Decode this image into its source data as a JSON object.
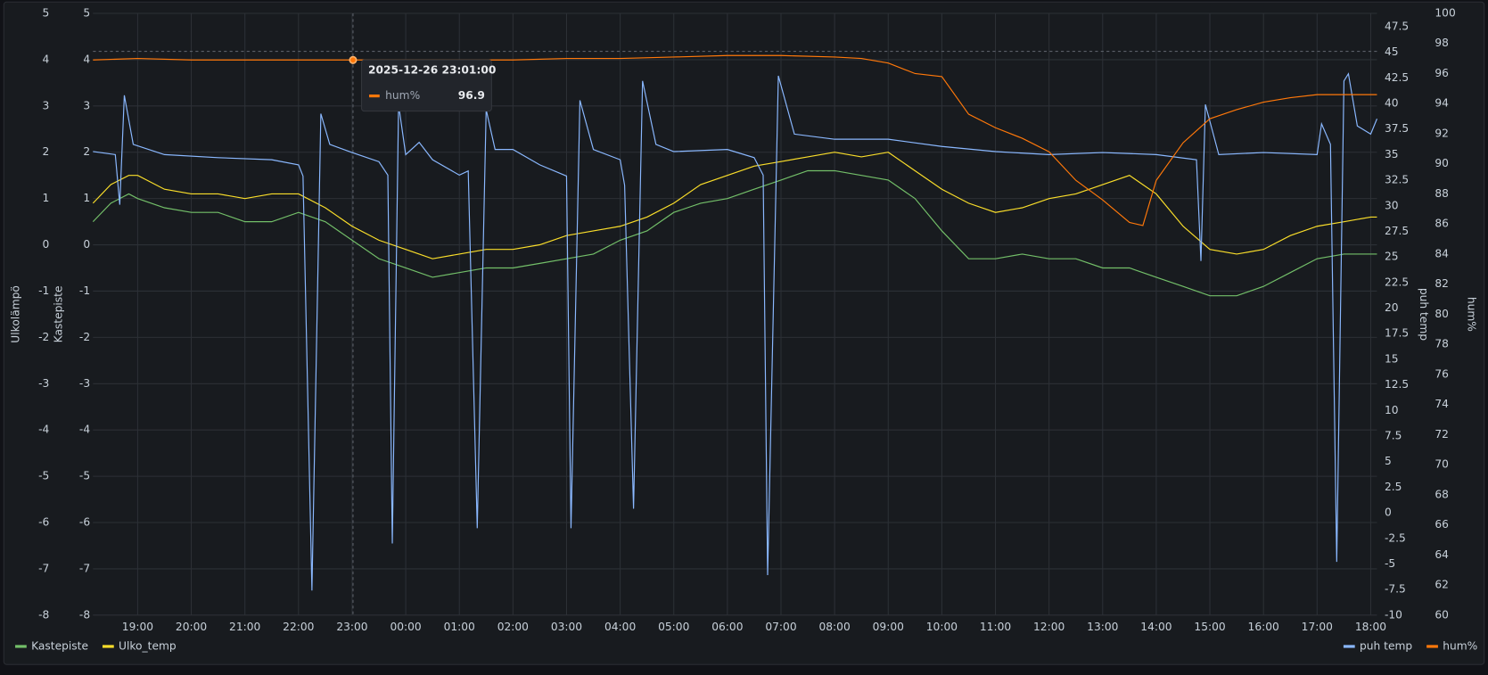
{
  "chart_data": {
    "type": "line",
    "grid": true,
    "xlim": [
      "18:10",
      "18:07"
    ],
    "xticks": [
      "19:00",
      "20:00",
      "21:00",
      "22:00",
      "23:00",
      "00:00",
      "01:00",
      "02:00",
      "03:00",
      "04:00",
      "05:00",
      "06:00",
      "07:00",
      "08:00",
      "09:00",
      "10:00",
      "11:00",
      "12:00",
      "13:00",
      "14:00",
      "15:00",
      "16:00",
      "17:00",
      "18:00"
    ],
    "axes": [
      {
        "label": "Ulkolämpö",
        "side": "left",
        "lim": [
          -8,
          5
        ],
        "ticks": [
          -8,
          -7,
          -6,
          -5,
          -4,
          -3,
          -2,
          -1,
          0,
          1,
          2,
          3,
          4,
          5
        ]
      },
      {
        "label": "Kastepiste",
        "side": "left",
        "lim": [
          -8,
          5
        ],
        "ticks": [
          -8,
          -7,
          -6,
          -5,
          -4,
          -3,
          -2,
          -1,
          0,
          1,
          2,
          3,
          4,
          5
        ]
      },
      {
        "label": "puh temp",
        "side": "right",
        "lim": [
          -10,
          48.8
        ],
        "ticks": [
          -10,
          -7.5,
          -5,
          -2.5,
          0,
          2.5,
          5,
          7.5,
          10,
          12.5,
          15,
          17.5,
          20,
          22.5,
          25,
          27.5,
          30,
          32.5,
          35,
          37.5,
          40,
          42.5,
          45,
          47.5
        ]
      },
      {
        "label": "hum%",
        "side": "right",
        "lim": [
          60,
          100
        ],
        "ticks": [
          60,
          62,
          64,
          66,
          68,
          70,
          72,
          74,
          76,
          78,
          80,
          82,
          84,
          86,
          88,
          90,
          92,
          94,
          96,
          98,
          100
        ]
      }
    ],
    "series": [
      {
        "name": "Kastepiste",
        "color": "#73bf69",
        "axis": 1,
        "legend_side": "left",
        "x": [
          "18:10",
          "18:30",
          "18:50",
          "19:00",
          "19:30",
          "20:00",
          "20:30",
          "21:00",
          "21:30",
          "22:00",
          "22:30",
          "23:00",
          "23:30",
          "00:00",
          "00:30",
          "01:00",
          "01:30",
          "02:00",
          "02:30",
          "03:00",
          "03:30",
          "04:00",
          "04:30",
          "05:00",
          "05:30",
          "06:00",
          "06:30",
          "07:00",
          "07:30",
          "08:00",
          "08:30",
          "09:00",
          "09:30",
          "10:00",
          "10:30",
          "11:00",
          "11:30",
          "12:00",
          "12:30",
          "13:00",
          "13:30",
          "14:00",
          "14:30",
          "15:00",
          "15:30",
          "16:00",
          "16:30",
          "17:00",
          "17:30",
          "18:00",
          "18:07"
        ],
        "values": [
          0.5,
          0.9,
          1.1,
          1.0,
          0.8,
          0.7,
          0.7,
          0.5,
          0.5,
          0.7,
          0.5,
          0.1,
          -0.3,
          -0.5,
          -0.7,
          -0.6,
          -0.5,
          -0.5,
          -0.4,
          -0.3,
          -0.2,
          0.1,
          0.3,
          0.7,
          0.9,
          1.0,
          1.2,
          1.4,
          1.6,
          1.6,
          1.5,
          1.4,
          1.0,
          0.3,
          -0.3,
          -0.3,
          -0.2,
          -0.3,
          -0.3,
          -0.5,
          -0.5,
          -0.7,
          -0.9,
          -1.1,
          -1.1,
          -0.9,
          -0.6,
          -0.3,
          -0.2,
          -0.2,
          -0.2
        ]
      },
      {
        "name": "Ulko_temp",
        "color": "#fade2a",
        "axis": 0,
        "legend_side": "left",
        "x": [
          "18:10",
          "18:30",
          "18:50",
          "19:00",
          "19:30",
          "20:00",
          "20:30",
          "21:00",
          "21:30",
          "22:00",
          "22:30",
          "23:00",
          "23:30",
          "00:00",
          "00:30",
          "01:00",
          "01:30",
          "02:00",
          "02:30",
          "03:00",
          "03:30",
          "04:00",
          "04:30",
          "05:00",
          "05:30",
          "06:00",
          "06:30",
          "07:00",
          "07:30",
          "08:00",
          "08:30",
          "09:00",
          "09:30",
          "10:00",
          "10:30",
          "11:00",
          "11:30",
          "12:00",
          "12:30",
          "13:00",
          "13:30",
          "14:00",
          "14:30",
          "15:00",
          "15:30",
          "16:00",
          "16:30",
          "17:00",
          "17:30",
          "18:00",
          "18:07"
        ],
        "values": [
          0.9,
          1.3,
          1.5,
          1.5,
          1.2,
          1.1,
          1.1,
          1.0,
          1.1,
          1.1,
          0.8,
          0.4,
          0.1,
          -0.1,
          -0.3,
          -0.2,
          -0.1,
          -0.1,
          0.0,
          0.2,
          0.3,
          0.4,
          0.6,
          0.9,
          1.3,
          1.5,
          1.7,
          1.8,
          1.9,
          2.0,
          1.9,
          2.0,
          1.6,
          1.2,
          0.9,
          0.7,
          0.8,
          1.0,
          1.1,
          1.3,
          1.5,
          1.1,
          0.4,
          -0.1,
          -0.2,
          -0.1,
          0.2,
          0.4,
          0.5,
          0.6,
          0.6
        ]
      },
      {
        "name": "puh temp",
        "color": "#8ab8ff",
        "axis": 2,
        "legend_side": "right",
        "x": [
          "18:10",
          "18:35",
          "18:40",
          "18:45",
          "18:55",
          "19:30",
          "20:30",
          "21:30",
          "22:00",
          "22:05",
          "22:15",
          "22:25",
          "22:35",
          "23:00",
          "23:30",
          "23:40",
          "23:45",
          "23:52",
          "00:00",
          "00:15",
          "00:30",
          "01:00",
          "01:10",
          "01:20",
          "01:30",
          "01:40",
          "02:00",
          "02:30",
          "03:00",
          "03:05",
          "03:15",
          "03:30",
          "04:00",
          "04:05",
          "04:15",
          "04:25",
          "04:40",
          "05:00",
          "06:00",
          "06:30",
          "06:40",
          "06:45",
          "06:57",
          "07:15",
          "08:00",
          "09:00",
          "10:00",
          "11:00",
          "12:00",
          "13:00",
          "14:00",
          "14:45",
          "14:50",
          "14:55",
          "15:10",
          "16:00",
          "17:00",
          "17:05",
          "17:15",
          "17:22",
          "17:30",
          "17:35",
          "17:45",
          "18:00",
          "18:07"
        ],
        "values": [
          35.3,
          35.0,
          30.1,
          40.8,
          36.0,
          35.0,
          34.7,
          34.5,
          34.0,
          32.9,
          -7.6,
          39.0,
          36.0,
          35.2,
          34.3,
          33.0,
          -3.0,
          39.9,
          35.0,
          36.2,
          34.5,
          33.0,
          33.4,
          -1.5,
          39.4,
          35.5,
          35.5,
          34.0,
          32.9,
          -1.5,
          40.3,
          35.5,
          34.5,
          32.0,
          0.4,
          42.2,
          36.0,
          35.3,
          35.5,
          34.7,
          33.0,
          -6.1,
          42.7,
          37.0,
          36.5,
          36.5,
          35.8,
          35.3,
          35.0,
          35.2,
          35.0,
          34.5,
          24.6,
          39.9,
          35.0,
          35.2,
          35.0,
          38.0,
          36.0,
          -4.8,
          42.2,
          42.9,
          37.8,
          37.0,
          38.5
        ]
      },
      {
        "name": "hum%",
        "color": "#ff780a",
        "axis": 3,
        "legend_side": "right",
        "x": [
          "18:10",
          "19:00",
          "20:00",
          "21:00",
          "22:00",
          "23:00",
          "00:00",
          "01:00",
          "02:00",
          "03:00",
          "04:00",
          "05:00",
          "06:00",
          "07:00",
          "08:00",
          "08:30",
          "09:00",
          "09:30",
          "10:00",
          "10:30",
          "11:00",
          "11:30",
          "12:00",
          "12:30",
          "13:00",
          "13:30",
          "13:45",
          "14:00",
          "14:30",
          "15:00",
          "15:30",
          "16:00",
          "16:30",
          "17:00",
          "17:30",
          "18:00",
          "18:07"
        ],
        "values": [
          96.9,
          97.0,
          96.9,
          96.9,
          96.9,
          96.9,
          96.9,
          96.9,
          96.9,
          97.0,
          97.0,
          97.1,
          97.2,
          97.2,
          97.1,
          97.0,
          96.7,
          96.0,
          95.8,
          93.3,
          92.4,
          91.7,
          90.8,
          88.9,
          87.6,
          86.1,
          85.9,
          88.9,
          91.4,
          93.0,
          93.6,
          94.1,
          94.4,
          94.6,
          94.6,
          94.6,
          94.6
        ]
      }
    ],
    "tooltip": {
      "time": "2025-12-26 23:01:00",
      "series": "hum%",
      "value": 96.9
    }
  }
}
